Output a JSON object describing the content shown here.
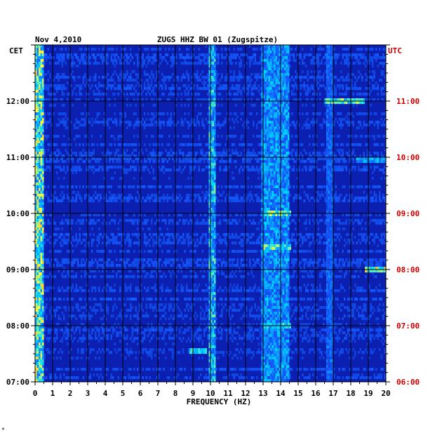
{
  "header": {
    "date": "Nov 4,2010",
    "station": "ZUGS HHZ BW 01 (Zugspitze)",
    "left_zone": "CET",
    "right_zone": "UTC"
  },
  "footer": {
    "mark": "*"
  },
  "colors": {
    "background_blue": "#0b1fb0",
    "grid": "#000000",
    "left_labels": "#000000",
    "right_labels": "#cc0000"
  },
  "chart_data": {
    "type": "heatmap",
    "title": "ZUGS HHZ BW 01 (Zugspitze)",
    "xlabel": "FREQUENCY (HZ)",
    "ylabel": "",
    "xlim": [
      0,
      20
    ],
    "x_ticks": [
      "0",
      "1",
      "2",
      "3",
      "4",
      "5",
      "6",
      "7",
      "8",
      "9",
      "10",
      "11",
      "12",
      "13",
      "14",
      "15",
      "16",
      "17",
      "18",
      "19",
      "20"
    ],
    "y_left_ticks": [
      "07:00",
      "08:00",
      "09:00",
      "10:00",
      "11:00",
      "12:00"
    ],
    "y_right_ticks": [
      "06:00",
      "07:00",
      "08:00",
      "09:00",
      "10:00",
      "11:00"
    ],
    "ylim_hours_cet": [
      7.0,
      13.0
    ],
    "bands": [
      {
        "x": [
          0.0,
          0.5
        ],
        "intensity": 0.85
      },
      {
        "x": [
          9.9,
          10.3
        ],
        "intensity": 0.7
      },
      {
        "x": [
          12.9,
          14.5
        ],
        "intensity": 0.6
      },
      {
        "x": [
          16.6,
          17.0
        ],
        "intensity": 0.45
      }
    ],
    "events": [
      {
        "x": [
          16.5,
          18.8
        ],
        "y_cet": 12.0,
        "intensity": 0.8
      },
      {
        "x": [
          18.8,
          20.0
        ],
        "y_cet": 9.0,
        "intensity": 0.9
      },
      {
        "x": [
          13.0,
          14.6
        ],
        "y_cet": 10.0,
        "intensity": 0.8
      },
      {
        "x": [
          13.0,
          14.6
        ],
        "y_cet": 9.4,
        "intensity": 0.8
      },
      {
        "x": [
          13.0,
          14.6
        ],
        "y_cet": 8.0,
        "intensity": 0.7
      },
      {
        "x": [
          8.8,
          9.8
        ],
        "y_cet": 7.55,
        "intensity": 0.7
      },
      {
        "x": [
          18.3,
          20.0
        ],
        "y_cet": 10.95,
        "intensity": 0.6
      }
    ]
  }
}
